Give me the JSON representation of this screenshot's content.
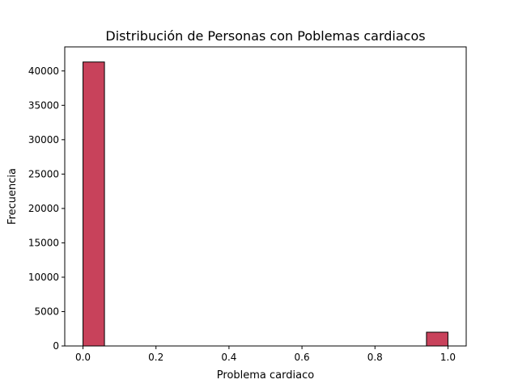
{
  "chart_data": {
    "type": "bar",
    "subtype": "histogram",
    "title": "Distribución de Personas con Poblemas cardiacos",
    "xlabel": "Problema cardiaco",
    "ylabel": "Frecuencia",
    "xlim": [
      -0.05,
      1.05
    ],
    "ylim": [
      0,
      43500
    ],
    "x_ticks": [
      0.0,
      0.2,
      0.4,
      0.6,
      0.8,
      1.0
    ],
    "x_tick_labels": [
      "0.0",
      "0.2",
      "0.4",
      "0.6",
      "0.8",
      "1.0"
    ],
    "y_ticks": [
      0,
      5000,
      10000,
      15000,
      20000,
      25000,
      30000,
      35000,
      40000
    ],
    "y_tick_labels": [
      "0",
      "5000",
      "10000",
      "15000",
      "20000",
      "25000",
      "30000",
      "35000",
      "40000"
    ],
    "bins": [
      {
        "x0": 0.0,
        "x1": 0.0588,
        "value": 41300
      },
      {
        "x0": 0.9412,
        "x1": 1.0,
        "value": 2000
      }
    ],
    "bar_color": "#c8425b",
    "edge_color": "#000000",
    "grid": false,
    "legend": false
  }
}
